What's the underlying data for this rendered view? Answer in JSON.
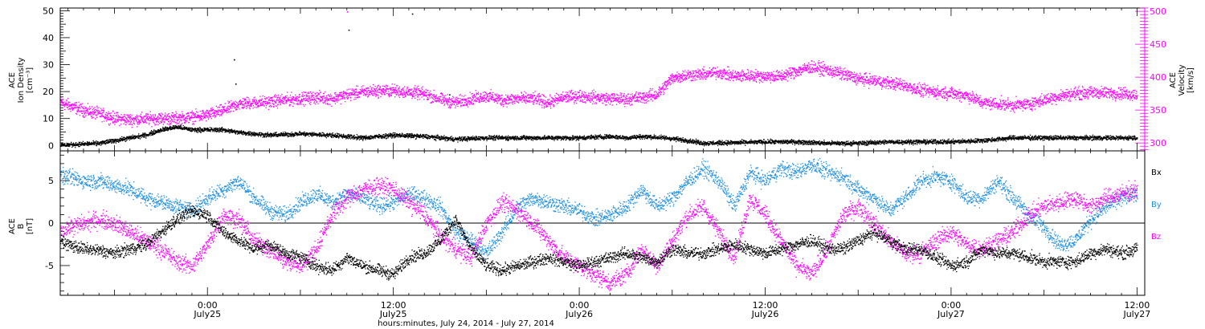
{
  "chart_data": [
    {
      "type": "scatter",
      "panel": "plasma",
      "ylabel_left": [
        "ACE",
        "Ion Density",
        "[cm⁻³]"
      ],
      "ylabel_right": [
        "ACE",
        "Velocity",
        "[km/s]"
      ],
      "ylim_left": [
        -2,
        51
      ],
      "ylim_right": [
        288,
        505
      ],
      "yticks_left": [
        "0",
        "10",
        "20",
        "30",
        "40",
        "50"
      ],
      "yticks_right": [
        "300",
        "350",
        "400",
        "450",
        "500"
      ],
      "x_unit": "hours since July 24, 2014 00:00",
      "xlim": [
        14.5,
        84.5
      ],
      "series": [
        {
          "axis": "left",
          "color": "#000000",
          "x": [
            14.5,
            17,
            19,
            20,
            21,
            22,
            23,
            24,
            25,
            26,
            28,
            30,
            32,
            34,
            36,
            38,
            40,
            42,
            44,
            46,
            48,
            50,
            51,
            52,
            53.5,
            55,
            56,
            58,
            60,
            62,
            64,
            66,
            68,
            70,
            72,
            74,
            76,
            78,
            80,
            82,
            84
          ],
          "y": [
            0.3,
            1,
            3,
            4,
            6,
            7,
            6,
            6,
            6,
            5,
            4,
            4.5,
            4,
            3,
            4,
            3.5,
            2.5,
            3,
            3,
            3,
            3,
            3.5,
            3,
            3.5,
            3,
            2,
            1,
            1.2,
            1.5,
            1.5,
            1,
            1,
            1.5,
            1.5,
            1.5,
            2,
            3,
            3,
            3,
            3,
            3
          ]
        },
        {
          "axis": "right",
          "color": "#ff00ff",
          "x": [
            14.5,
            15,
            16,
            17,
            18,
            19,
            20,
            21,
            22,
            23,
            24,
            25,
            26,
            27,
            28,
            29,
            30,
            31,
            32,
            33,
            34,
            35,
            36,
            37,
            38,
            39,
            40,
            41,
            42,
            43,
            44,
            45,
            46,
            47,
            48,
            49,
            50,
            51,
            52,
            53,
            54,
            55,
            56,
            57,
            58,
            59,
            60,
            61,
            62,
            63,
            64,
            65,
            66,
            67,
            68,
            69,
            70,
            71,
            72,
            73,
            74,
            75,
            76,
            77,
            78,
            79,
            80,
            81,
            82,
            83,
            84
          ],
          "y": [
            362,
            358,
            350,
            345,
            338,
            336,
            337,
            338,
            338,
            340,
            343,
            350,
            360,
            362,
            363,
            366,
            368,
            370,
            368,
            374,
            378,
            380,
            380,
            378,
            375,
            367,
            362,
            368,
            372,
            366,
            368,
            368,
            362,
            370,
            372,
            370,
            368,
            367,
            370,
            374,
            400,
            404,
            405,
            408,
            402,
            403,
            402,
            402,
            410,
            416,
            411,
            405,
            398,
            395,
            392,
            388,
            380,
            378,
            376,
            373,
            362,
            360,
            358,
            360,
            366,
            372,
            376,
            377,
            377,
            376,
            374
          ]
        }
      ],
      "outliers": [
        {
          "axis": "left",
          "color": "#000000",
          "x": [
            25.7,
            25.8,
            39.6
          ],
          "y": [
            32,
            23,
            19
          ]
        },
        {
          "axis": "right",
          "color": "#ff00ff",
          "x": [
            33.0
          ],
          "y": [
            500
          ]
        },
        {
          "axis": "left",
          "color": "#000000",
          "x": [
            33.1,
            37.2
          ],
          "y": [
            43,
            49
          ]
        }
      ]
    },
    {
      "type": "scatter",
      "panel": "magnetic_field",
      "ylabel_left": [
        "ACE",
        "B",
        "[nT]"
      ],
      "ylim": [
        -8.5,
        8.5
      ],
      "yticks": [
        "-5",
        "0",
        "5"
      ],
      "zero_line": true,
      "legend_position": "right",
      "x_unit": "hours since July 24, 2014 00:00",
      "xlim": [
        14.5,
        84.5
      ],
      "series": [
        {
          "name": "Bx",
          "color": "#000000",
          "x": [
            14.5,
            15,
            16,
            17,
            18,
            19,
            20,
            21,
            22,
            23,
            24,
            25,
            26,
            27,
            28,
            29,
            30,
            31,
            32,
            33,
            34,
            35,
            36,
            37,
            38,
            39,
            40,
            41,
            42,
            43,
            44,
            45,
            46,
            47,
            48,
            49,
            50,
            51,
            52,
            53,
            54,
            55,
            56,
            57,
            58,
            59,
            60,
            61,
            62,
            63,
            64,
            65,
            66,
            67,
            68,
            69,
            70,
            71,
            72,
            73,
            74,
            75,
            76,
            77,
            78,
            79,
            80,
            81,
            82,
            83,
            84
          ],
          "y": [
            -2,
            -2.5,
            -3,
            -3.2,
            -3.5,
            -3,
            -2.5,
            -1,
            0.5,
            1.5,
            1,
            -1,
            -2,
            -3,
            -2.5,
            -3.5,
            -4,
            -5,
            -5.5,
            -4,
            -5,
            -5.5,
            -6,
            -4,
            -3.5,
            -2,
            0.5,
            -3,
            -5,
            -5.5,
            -5,
            -4.5,
            -4,
            -4.5,
            -5,
            -4.5,
            -4,
            -3.5,
            -4,
            -4.5,
            -3,
            -3.5,
            -3.5,
            -3,
            -2.5,
            -3,
            -3.5,
            -3,
            -2.5,
            -2,
            -3,
            -3,
            -2,
            -1,
            -2,
            -3,
            -3,
            -4,
            -5,
            -4.5,
            -3,
            -3.5,
            -3.5,
            -4,
            -4.5,
            -4.5,
            -4.5,
            -3.5,
            -3,
            -3.5,
            -3
          ]
        },
        {
          "name": "By",
          "color": "#1f8fe0",
          "x": [
            14.5,
            15,
            16,
            17,
            18,
            19,
            20,
            21,
            22,
            23,
            24,
            25,
            26,
            27,
            28,
            29,
            30,
            31,
            32,
            33,
            34,
            35,
            36,
            37,
            38,
            39,
            40,
            41,
            42,
            43,
            44,
            45,
            46,
            47,
            48,
            49,
            50,
            51,
            52,
            53,
            54,
            55,
            56,
            57,
            58,
            59,
            60,
            61,
            62,
            63,
            64,
            65,
            66,
            67,
            68,
            69,
            70,
            71,
            72,
            73,
            74,
            75,
            76,
            77,
            78,
            79,
            80,
            81,
            82,
            83,
            84
          ],
          "y": [
            5.5,
            5.5,
            5,
            5,
            4.5,
            4,
            3,
            2.5,
            2,
            1.5,
            3,
            4,
            5,
            3,
            1.5,
            1,
            2.5,
            3.5,
            2.5,
            3.5,
            3,
            2,
            2.5,
            3.5,
            3,
            2,
            -1,
            -2,
            -3.5,
            -1,
            2,
            3,
            2.5,
            2,
            1.5,
            0.5,
            1,
            2,
            4,
            2,
            3,
            5,
            6.5,
            5,
            2,
            6,
            5,
            6.5,
            6,
            7,
            6,
            5.5,
            4,
            3,
            1.5,
            3,
            5,
            5.5,
            5,
            3,
            3,
            5,
            3,
            1,
            -0.5,
            -2.5,
            -2,
            0.5,
            2,
            3,
            3.5
          ]
        },
        {
          "name": "Bz",
          "color": "#ff00ff",
          "x": [
            14.5,
            15,
            16,
            17,
            18,
            19,
            20,
            21,
            22,
            23,
            24,
            25,
            26,
            27,
            28,
            29,
            30,
            31,
            32,
            33,
            34,
            35,
            36,
            37,
            38,
            39,
            40,
            41,
            42,
            43,
            44,
            45,
            46,
            47,
            48,
            49,
            50,
            51,
            52,
            53,
            54,
            55,
            56,
            57,
            58,
            59,
            60,
            61,
            62,
            63,
            64,
            65,
            66,
            67,
            68,
            69,
            70,
            71,
            72,
            73,
            74,
            75,
            76,
            77,
            78,
            79,
            80,
            81,
            82,
            83,
            84
          ],
          "y": [
            -1,
            -0.5,
            0,
            0.5,
            0,
            -1,
            -2,
            -3,
            -4.5,
            -5,
            -2.5,
            1,
            0.5,
            -2,
            -3,
            -4.5,
            -5,
            -3,
            1,
            3,
            4,
            4.5,
            4,
            2.5,
            1,
            -1.5,
            -3,
            -4,
            0,
            2.5,
            1.5,
            0,
            -2,
            -4,
            -5,
            -6,
            -7,
            -6,
            -3,
            -5,
            -2,
            1,
            2,
            -1,
            -4,
            3,
            1,
            -2,
            -5,
            -6,
            -3,
            1,
            2,
            0,
            -2,
            -3.5,
            -3.5,
            -2,
            -1,
            -2.5,
            -3,
            -2,
            -1,
            1,
            2,
            2.5,
            3,
            2,
            3,
            3.5,
            4
          ]
        }
      ]
    }
  ],
  "legend": {
    "bx": "Bx",
    "by": "By",
    "bz": "Bz"
  },
  "colors": {
    "black": "#000000",
    "magenta": "#ff00ff",
    "blue": "#1f8fe0"
  },
  "x_axis": {
    "ticks": [
      {
        "hour": 24,
        "time": "0:00",
        "date": "July25"
      },
      {
        "hour": 36,
        "time": "12:00",
        "date": "July25"
      },
      {
        "hour": 48,
        "time": "0:00",
        "date": "July26"
      },
      {
        "hour": 60,
        "time": "12:00",
        "date": "July26"
      },
      {
        "hour": 72,
        "time": "0:00",
        "date": "July27"
      },
      {
        "hour": 84,
        "time": "12:00",
        "date": "July27"
      }
    ],
    "label": "hours:minutes, July 24, 2014 - July 27, 2014"
  }
}
